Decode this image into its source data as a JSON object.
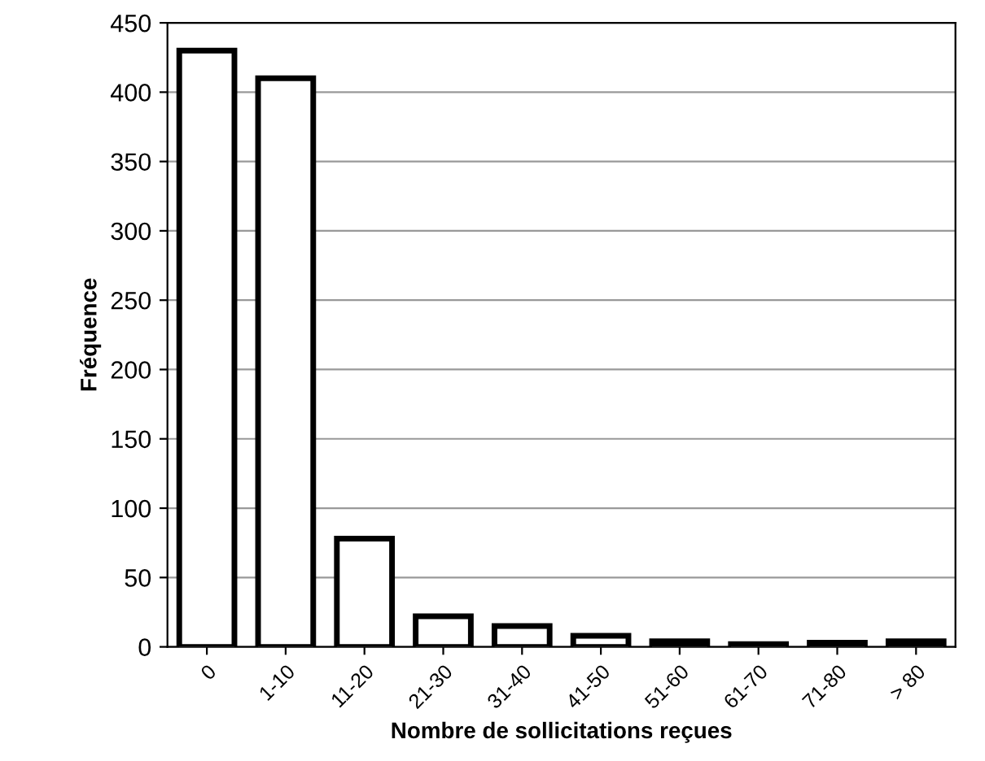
{
  "chart_data": {
    "type": "bar",
    "xlabel": "Nombre de sollicitations reçues",
    "ylabel": "Fréquence",
    "categories": [
      "0",
      "1-10",
      "11-20",
      "21-30",
      "31-40",
      "41-50",
      "51-60",
      "61-70",
      "71-80",
      "> 80"
    ],
    "values": [
      430,
      410,
      78,
      22,
      15,
      8,
      4,
      2,
      3,
      4
    ],
    "color": "#ffffff",
    "ylim": [
      0,
      450
    ],
    "yticks": [
      0,
      50,
      100,
      150,
      200,
      250,
      300,
      350,
      400,
      450
    ],
    "grid": "y"
  }
}
